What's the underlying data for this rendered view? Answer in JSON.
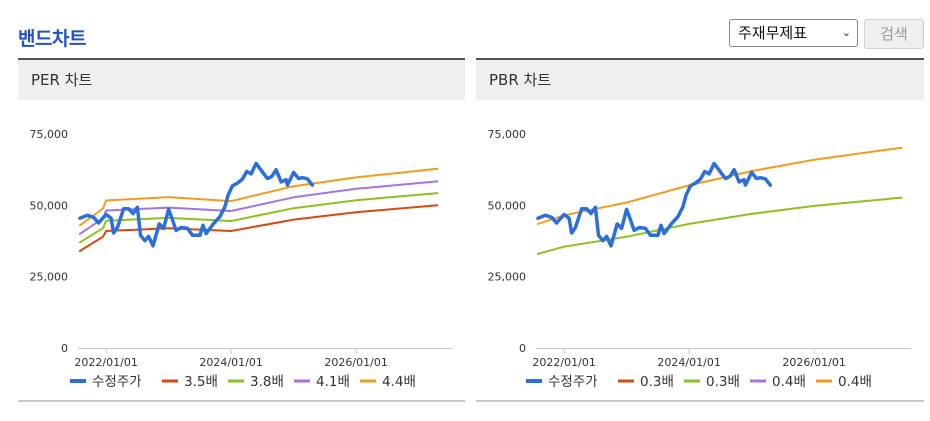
{
  "header": {
    "title": "밴드차트"
  },
  "controls": {
    "select_value": "주재무제표",
    "search_label": "검색"
  },
  "chart_data": [
    {
      "type": "line",
      "title": "PER 차트",
      "ylim": [
        0,
        75000
      ],
      "yticks": [
        "0",
        "25,000",
        "50,000",
        "75,000"
      ],
      "xlim": [
        2021.55,
        2027.55
      ],
      "xticks": [
        {
          "x": 2022.0,
          "label": "2022/01/01"
        },
        {
          "x": 2024.0,
          "label": "2024/01/01"
        },
        {
          "x": 2026.0,
          "label": "2026/01/01"
        }
      ],
      "series": [
        {
          "name": "수정주가",
          "color": "#2a6fdb",
          "width": 3.5,
          "points": [
            [
              2021.58,
              45500
            ],
            [
              2021.7,
              46500
            ],
            [
              2021.8,
              45800
            ],
            [
              2021.88,
              43800
            ],
            [
              2021.95,
              45600
            ],
            [
              2022.0,
              46800
            ],
            [
              2022.08,
              45500
            ],
            [
              2022.12,
              40300
            ],
            [
              2022.18,
              42200
            ],
            [
              2022.28,
              48800
            ],
            [
              2022.36,
              48800
            ],
            [
              2022.43,
              47100
            ],
            [
              2022.5,
              49300
            ],
            [
              2022.55,
              39500
            ],
            [
              2022.62,
              37600
            ],
            [
              2022.68,
              39100
            ],
            [
              2022.75,
              35800
            ],
            [
              2022.85,
              43500
            ],
            [
              2022.92,
              41900
            ],
            [
              2023.0,
              48600
            ],
            [
              2023.05,
              45600
            ],
            [
              2023.12,
              41200
            ],
            [
              2023.2,
              42200
            ],
            [
              2023.3,
              42000
            ],
            [
              2023.38,
              39500
            ],
            [
              2023.5,
              39500
            ],
            [
              2023.55,
              43000
            ],
            [
              2023.6,
              40100
            ],
            [
              2023.72,
              43600
            ],
            [
              2023.82,
              46000
            ],
            [
              2023.9,
              49500
            ],
            [
              2023.95,
              53500
            ],
            [
              2024.02,
              56800
            ],
            [
              2024.1,
              57800
            ],
            [
              2024.18,
              59200
            ],
            [
              2024.25,
              61900
            ],
            [
              2024.32,
              61000
            ],
            [
              2024.4,
              64700
            ],
            [
              2024.5,
              61700
            ],
            [
              2024.58,
              59400
            ],
            [
              2024.65,
              60100
            ],
            [
              2024.72,
              62500
            ],
            [
              2024.8,
              58200
            ],
            [
              2024.88,
              59000
            ],
            [
              2024.9,
              57100
            ],
            [
              2025.0,
              61500
            ],
            [
              2025.08,
              59400
            ],
            [
              2025.14,
              59700
            ],
            [
              2025.22,
              59300
            ],
            [
              2025.3,
              57100
            ]
          ]
        },
        {
          "name": "3.5배",
          "color": "#d64a12",
          "width": 2,
          "points": [
            [
              2021.58,
              34000
            ],
            [
              2021.95,
              39000
            ],
            [
              2022.0,
              41000
            ],
            [
              2023.0,
              42000
            ],
            [
              2024.0,
              41000
            ],
            [
              2025.0,
              45000
            ],
            [
              2026.0,
              47600
            ],
            [
              2027.3,
              50000
            ]
          ]
        },
        {
          "name": "3.8배",
          "color": "#8cc21e",
          "width": 2,
          "points": [
            [
              2021.58,
              37000
            ],
            [
              2021.95,
              42000
            ],
            [
              2022.0,
              44600
            ],
            [
              2023.0,
              45600
            ],
            [
              2024.0,
              44500
            ],
            [
              2025.0,
              49000
            ],
            [
              2026.0,
              51800
            ],
            [
              2027.3,
              54300
            ]
          ]
        },
        {
          "name": "4.1배",
          "color": "#a574e0",
          "width": 2,
          "points": [
            [
              2021.58,
              40000
            ],
            [
              2021.95,
              45500
            ],
            [
              2022.0,
              48200
            ],
            [
              2023.0,
              49200
            ],
            [
              2024.0,
              48000
            ],
            [
              2025.0,
              52800
            ],
            [
              2026.0,
              55800
            ],
            [
              2027.3,
              58400
            ]
          ]
        },
        {
          "name": "4.4배",
          "color": "#f59b1c",
          "width": 2,
          "points": [
            [
              2021.58,
              43000
            ],
            [
              2021.95,
              48900
            ],
            [
              2022.0,
              51700
            ],
            [
              2023.0,
              52900
            ],
            [
              2024.0,
              51500
            ],
            [
              2025.0,
              56700
            ],
            [
              2026.0,
              59800
            ],
            [
              2027.3,
              62800
            ]
          ]
        }
      ]
    },
    {
      "type": "line",
      "title": "PBR 차트",
      "ylim": [
        0,
        75000
      ],
      "yticks": [
        "0",
        "25,000",
        "50,000",
        "75,000"
      ],
      "xlim": [
        2021.55,
        2027.55
      ],
      "xticks": [
        {
          "x": 2022.0,
          "label": "2022/01/01"
        },
        {
          "x": 2024.0,
          "label": "2024/01/01"
        },
        {
          "x": 2026.0,
          "label": "2026/01/01"
        }
      ],
      "series": [
        {
          "name": "수정주가",
          "color": "#2a6fdb",
          "width": 3.5,
          "points": [
            [
              2021.58,
              45500
            ],
            [
              2021.7,
              46500
            ],
            [
              2021.8,
              45800
            ],
            [
              2021.88,
              43800
            ],
            [
              2021.95,
              45600
            ],
            [
              2022.0,
              46800
            ],
            [
              2022.08,
              45500
            ],
            [
              2022.12,
              40300
            ],
            [
              2022.18,
              42200
            ],
            [
              2022.28,
              48800
            ],
            [
              2022.36,
              48800
            ],
            [
              2022.43,
              47100
            ],
            [
              2022.5,
              49300
            ],
            [
              2022.55,
              39500
            ],
            [
              2022.62,
              37600
            ],
            [
              2022.68,
              39100
            ],
            [
              2022.75,
              35800
            ],
            [
              2022.85,
              43500
            ],
            [
              2022.92,
              41900
            ],
            [
              2023.0,
              48600
            ],
            [
              2023.05,
              45600
            ],
            [
              2023.12,
              41200
            ],
            [
              2023.2,
              42200
            ],
            [
              2023.3,
              42000
            ],
            [
              2023.38,
              39500
            ],
            [
              2023.5,
              39500
            ],
            [
              2023.55,
              43000
            ],
            [
              2023.6,
              40100
            ],
            [
              2023.72,
              43600
            ],
            [
              2023.82,
              46000
            ],
            [
              2023.9,
              49500
            ],
            [
              2023.95,
              53500
            ],
            [
              2024.02,
              56800
            ],
            [
              2024.1,
              57800
            ],
            [
              2024.18,
              59200
            ],
            [
              2024.25,
              61900
            ],
            [
              2024.32,
              61000
            ],
            [
              2024.4,
              64700
            ],
            [
              2024.5,
              61700
            ],
            [
              2024.58,
              59400
            ],
            [
              2024.65,
              60100
            ],
            [
              2024.72,
              62500
            ],
            [
              2024.8,
              58200
            ],
            [
              2024.88,
              59000
            ],
            [
              2024.9,
              57100
            ],
            [
              2025.0,
              61500
            ],
            [
              2025.08,
              59400
            ],
            [
              2025.14,
              59700
            ],
            [
              2025.22,
              59300
            ],
            [
              2025.3,
              57100
            ]
          ]
        },
        {
          "name": "0.3배",
          "color": "#d64a12",
          "width": 2,
          "points": []
        },
        {
          "name": "0.3배",
          "color": "#8cc21e",
          "width": 2,
          "points": [
            [
              2021.58,
              33000
            ],
            [
              2022.0,
              35500
            ],
            [
              2023.0,
              39000
            ],
            [
              2024.0,
              43500
            ],
            [
              2025.0,
              47000
            ],
            [
              2026.0,
              49800
            ],
            [
              2027.4,
              52700
            ]
          ]
        },
        {
          "name": "0.4배",
          "color": "#a574e0",
          "width": 2,
          "points": []
        },
        {
          "name": "0.4배",
          "color": "#f59b1c",
          "width": 2,
          "points": [
            [
              2021.58,
              43500
            ],
            [
              2022.0,
              46500
            ],
            [
              2023.0,
              51000
            ],
            [
              2024.0,
              57000
            ],
            [
              2025.0,
              62000
            ],
            [
              2026.0,
              66000
            ],
            [
              2027.4,
              70200
            ]
          ]
        }
      ]
    }
  ]
}
